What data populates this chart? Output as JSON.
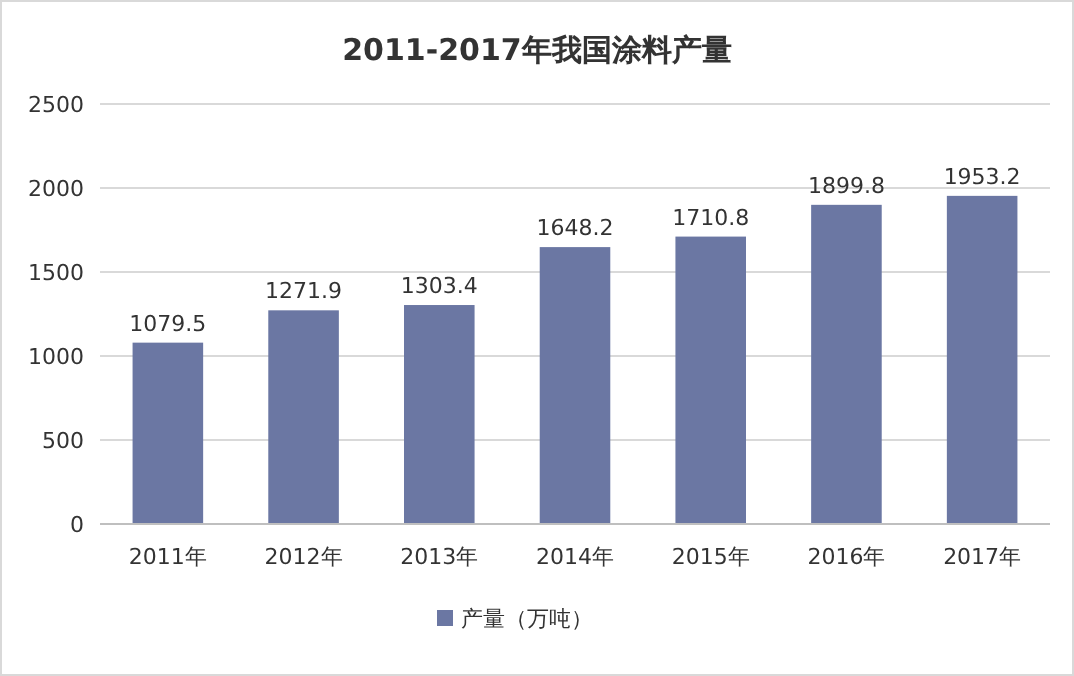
{
  "chart_data": {
    "type": "bar",
    "title": "2011-2017年我国涂料产量",
    "categories": [
      "2011年",
      "2012年",
      "2013年",
      "2014年",
      "2015年",
      "2016年",
      "2017年"
    ],
    "series": [
      {
        "name": "产量（万吨）",
        "color": "#6b77a3",
        "values": [
          1079.5,
          1271.9,
          1303.4,
          1648.2,
          1710.8,
          1899.8,
          1953.2
        ]
      }
    ],
    "ylim": [
      0,
      2500
    ],
    "yticks": [
      0,
      500,
      1000,
      1500,
      2000,
      2500
    ],
    "grid": "y",
    "legend": "bottom",
    "data_labels": true
  }
}
